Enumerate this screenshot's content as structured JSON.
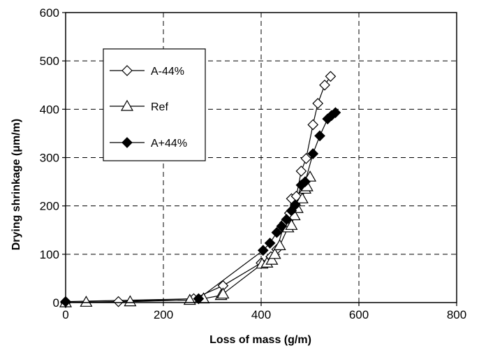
{
  "chart_data": {
    "type": "scatter",
    "xlabel": "Loss of mass (g/m)",
    "ylabel": "Drying shrinkage (μm/m)",
    "xlim": [
      0,
      800
    ],
    "ylim": [
      0,
      600
    ],
    "xticks": [
      "0",
      "200",
      "400",
      "600",
      "800"
    ],
    "yticks": [
      "0",
      "100",
      "200",
      "300",
      "400",
      "500",
      "600"
    ],
    "grid": "dashed",
    "legend_position": "top-left",
    "series": [
      {
        "name": "A-44%",
        "marker": "open-diamond",
        "points": [
          [
            0,
            0
          ],
          [
            108,
            2
          ],
          [
            262,
            8
          ],
          [
            322,
            35
          ],
          [
            400,
            82
          ],
          [
            420,
            95
          ],
          [
            432,
            110
          ],
          [
            448,
            165
          ],
          [
            458,
            185
          ],
          [
            462,
            215
          ],
          [
            472,
            220
          ],
          [
            482,
            272
          ],
          [
            492,
            298
          ],
          [
            506,
            368
          ],
          [
            516,
            412
          ],
          [
            530,
            450
          ],
          [
            542,
            468
          ]
        ]
      },
      {
        "name": "Ref",
        "marker": "open-triangle",
        "points": [
          [
            0,
            0
          ],
          [
            42,
            1
          ],
          [
            132,
            2
          ],
          [
            254,
            5
          ],
          [
            282,
            8
          ],
          [
            318,
            15
          ],
          [
            322,
            18
          ],
          [
            402,
            80
          ],
          [
            412,
            82
          ],
          [
            422,
            88
          ],
          [
            428,
            100
          ],
          [
            438,
            118
          ],
          [
            455,
            155
          ],
          [
            462,
            160
          ],
          [
            468,
            180
          ],
          [
            474,
            195
          ],
          [
            484,
            215
          ],
          [
            490,
            235
          ],
          [
            494,
            240
          ],
          [
            500,
            260
          ]
        ]
      },
      {
        "name": "A+44%",
        "marker": "filled-diamond",
        "points": [
          [
            0,
            2
          ],
          [
            272,
            8
          ],
          [
            404,
            108
          ],
          [
            418,
            123
          ],
          [
            432,
            145
          ],
          [
            442,
            158
          ],
          [
            452,
            172
          ],
          [
            462,
            190
          ],
          [
            470,
            202
          ],
          [
            482,
            243
          ],
          [
            490,
            250
          ],
          [
            506,
            308
          ],
          [
            520,
            345
          ],
          [
            536,
            380
          ],
          [
            544,
            387
          ],
          [
            552,
            393
          ]
        ]
      }
    ]
  }
}
